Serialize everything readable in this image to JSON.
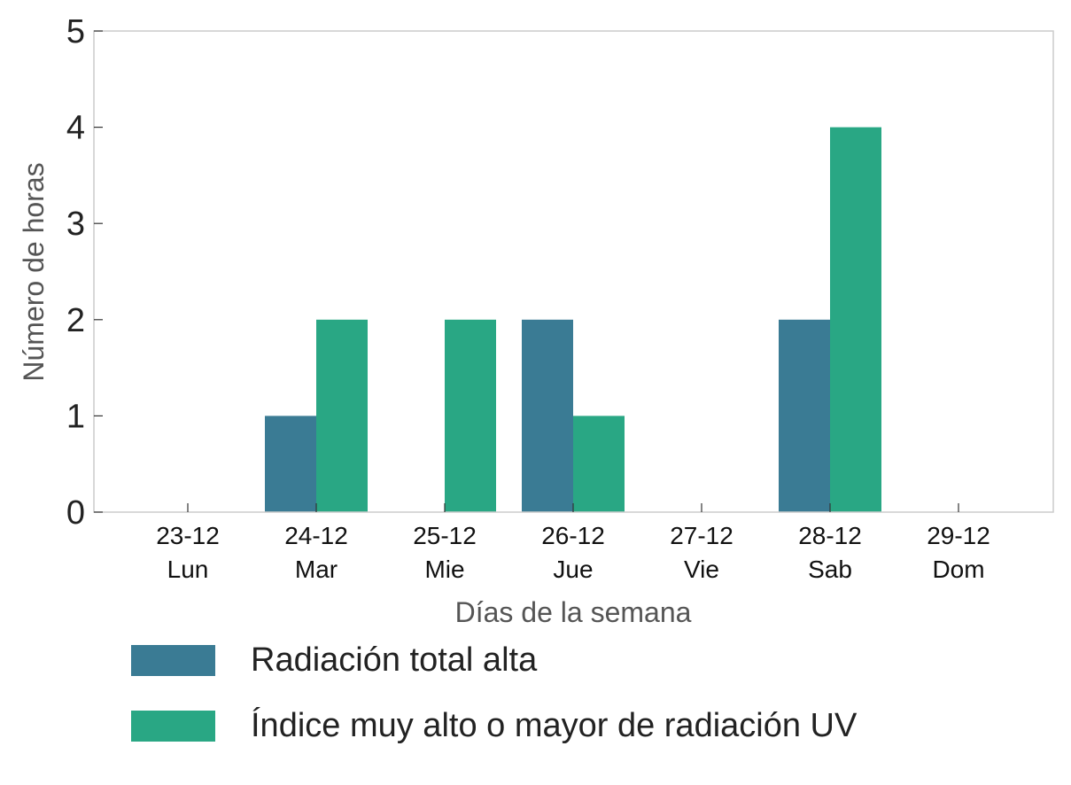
{
  "chart_data": {
    "type": "bar",
    "categories": [
      [
        "23-12",
        "Lun"
      ],
      [
        "24-12",
        "Mar"
      ],
      [
        "25-12",
        "Mie"
      ],
      [
        "26-12",
        "Jue"
      ],
      [
        "27-12",
        "Vie"
      ],
      [
        "28-12",
        "Sab"
      ],
      [
        "29-12",
        "Dom"
      ]
    ],
    "series": [
      {
        "name": "Radiación total alta",
        "color": "#3a7b94",
        "values": [
          0,
          1,
          0,
          2,
          0,
          2,
          0
        ]
      },
      {
        "name": "Índice muy alto o mayor de radiación UV",
        "color": "#29a784",
        "values": [
          0,
          2,
          2,
          1,
          0,
          4,
          0
        ]
      }
    ],
    "xlabel": "Días de la semana",
    "ylabel": "Número de horas",
    "ylim": [
      0,
      5
    ],
    "yticks": [
      "0",
      "1",
      "2",
      "3",
      "4",
      "5"
    ],
    "grid": false,
    "legend_position": "bottom-left"
  }
}
